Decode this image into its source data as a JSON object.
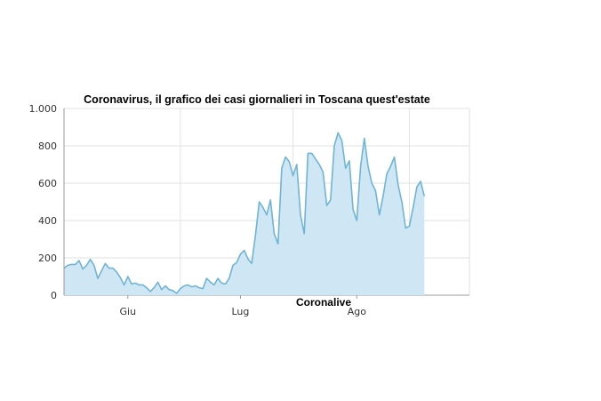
{
  "chart_data": {
    "type": "area",
    "title": "Coronavirus, il grafico dei casi giornalieri in Toscana quest'estate",
    "source_label": "Coronalive",
    "xlabel": "",
    "ylabel": "",
    "ylim": [
      0,
      1000
    ],
    "yticks": [
      {
        "value": 0,
        "label": "0"
      },
      {
        "value": 200,
        "label": "200"
      },
      {
        "value": 400,
        "label": "400"
      },
      {
        "value": 600,
        "label": "600"
      },
      {
        "value": 800,
        "label": "800"
      },
      {
        "value": 1000,
        "label": "1.000"
      }
    ],
    "xlim": [
      "2020-05-15",
      "2020-08-31"
    ],
    "xticks": [
      {
        "date": "2020-06-01",
        "label": "Giu"
      },
      {
        "date": "2020-07-01",
        "label": "Lug"
      },
      {
        "date": "2020-08-01",
        "label": "Ago"
      }
    ],
    "grid": true,
    "line_color": "#6fb5d4",
    "fill_color": "#cfe6f4",
    "series": [
      {
        "values": [
          [
            "2020-05-15",
            145
          ],
          [
            "2020-05-16",
            160
          ],
          [
            "2020-05-17",
            165
          ],
          [
            "2020-05-18",
            165
          ],
          [
            "2020-05-19",
            185
          ],
          [
            "2020-05-20",
            140
          ],
          [
            "2020-05-21",
            160
          ],
          [
            "2020-05-22",
            192
          ],
          [
            "2020-05-23",
            160
          ],
          [
            "2020-05-24",
            90
          ],
          [
            "2020-05-25",
            130
          ],
          [
            "2020-05-26",
            170
          ],
          [
            "2020-05-27",
            145
          ],
          [
            "2020-05-28",
            145
          ],
          [
            "2020-05-29",
            125
          ],
          [
            "2020-05-30",
            95
          ],
          [
            "2020-05-31",
            55
          ],
          [
            "2020-06-01",
            100
          ],
          [
            "2020-06-02",
            60
          ],
          [
            "2020-06-03",
            65
          ],
          [
            "2020-06-04",
            55
          ],
          [
            "2020-06-05",
            55
          ],
          [
            "2020-06-06",
            40
          ],
          [
            "2020-06-07",
            20
          ],
          [
            "2020-06-08",
            40
          ],
          [
            "2020-06-09",
            70
          ],
          [
            "2020-06-10",
            30
          ],
          [
            "2020-06-11",
            50
          ],
          [
            "2020-06-12",
            30
          ],
          [
            "2020-06-13",
            25
          ],
          [
            "2020-06-14",
            10
          ],
          [
            "2020-06-15",
            35
          ],
          [
            "2020-06-16",
            50
          ],
          [
            "2020-06-17",
            55
          ],
          [
            "2020-06-18",
            45
          ],
          [
            "2020-06-19",
            50
          ],
          [
            "2020-06-20",
            40
          ],
          [
            "2020-06-21",
            35
          ],
          [
            "2020-06-22",
            90
          ],
          [
            "2020-06-23",
            70
          ],
          [
            "2020-06-24",
            55
          ],
          [
            "2020-06-25",
            90
          ],
          [
            "2020-06-26",
            65
          ],
          [
            "2020-06-27",
            60
          ],
          [
            "2020-06-28",
            90
          ],
          [
            "2020-06-29",
            160
          ],
          [
            "2020-06-30",
            175
          ],
          [
            "2020-07-01",
            220
          ],
          [
            "2020-07-02",
            240
          ],
          [
            "2020-07-03",
            195
          ],
          [
            "2020-07-04",
            170
          ],
          [
            "2020-07-05",
            320
          ],
          [
            "2020-07-06",
            500
          ],
          [
            "2020-07-07",
            470
          ],
          [
            "2020-07-08",
            430
          ],
          [
            "2020-07-09",
            510
          ],
          [
            "2020-07-10",
            330
          ],
          [
            "2020-07-11",
            275
          ],
          [
            "2020-07-12",
            680
          ],
          [
            "2020-07-13",
            740
          ],
          [
            "2020-07-14",
            715
          ],
          [
            "2020-07-15",
            640
          ],
          [
            "2020-07-16",
            700
          ],
          [
            "2020-07-17",
            430
          ],
          [
            "2020-07-18",
            330
          ],
          [
            "2020-07-19",
            760
          ],
          [
            "2020-07-20",
            760
          ],
          [
            "2020-07-21",
            730
          ],
          [
            "2020-07-22",
            700
          ],
          [
            "2020-07-23",
            660
          ],
          [
            "2020-07-24",
            480
          ],
          [
            "2020-07-25",
            510
          ],
          [
            "2020-07-26",
            800
          ],
          [
            "2020-07-27",
            870
          ],
          [
            "2020-07-28",
            830
          ],
          [
            "2020-07-29",
            680
          ],
          [
            "2020-07-30",
            720
          ],
          [
            "2020-07-31",
            460
          ],
          [
            "2020-08-01",
            400
          ],
          [
            "2020-08-02",
            690
          ],
          [
            "2020-08-03",
            840
          ],
          [
            "2020-08-04",
            690
          ],
          [
            "2020-08-05",
            600
          ],
          [
            "2020-08-06",
            560
          ],
          [
            "2020-08-07",
            430
          ],
          [
            "2020-08-08",
            530
          ],
          [
            "2020-08-09",
            650
          ],
          [
            "2020-08-10",
            690
          ],
          [
            "2020-08-11",
            740
          ],
          [
            "2020-08-12",
            590
          ],
          [
            "2020-08-13",
            500
          ],
          [
            "2020-08-14",
            360
          ],
          [
            "2020-08-15",
            370
          ],
          [
            "2020-08-16",
            470
          ],
          [
            "2020-08-17",
            580
          ],
          [
            "2020-08-18",
            610
          ],
          [
            "2020-08-19",
            530
          ]
        ]
      }
    ]
  }
}
